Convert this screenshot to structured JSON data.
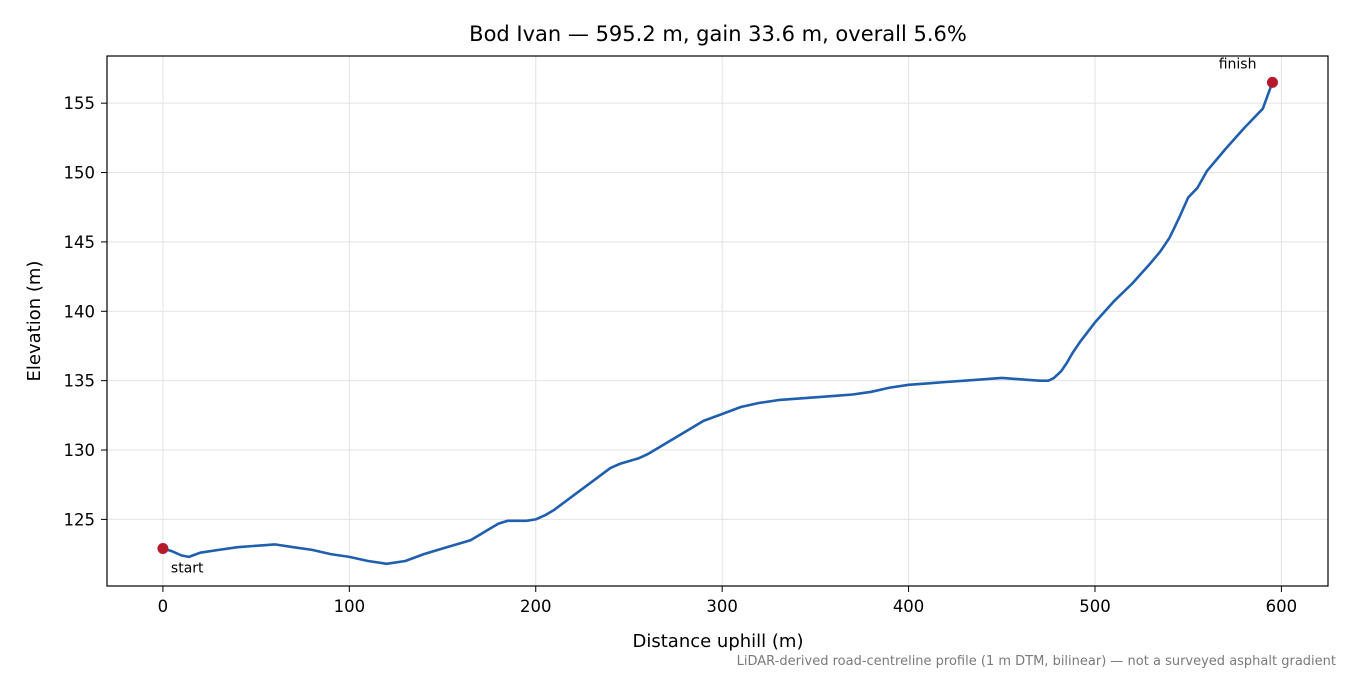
{
  "chart_data": {
    "type": "line",
    "title": "Bod Ivan — 595.2 m, gain 33.6 m, overall 5.6%",
    "xlabel": "Distance uphill (m)",
    "ylabel": "Elevation (m)",
    "xlim": [
      -30,
      625
    ],
    "ylim": [
      120.2,
      158.4
    ],
    "xticks": [
      0,
      100,
      200,
      300,
      400,
      500,
      600
    ],
    "yticks": [
      125,
      130,
      135,
      140,
      145,
      150,
      155
    ],
    "grid": true,
    "line_color": "#1f5fae",
    "marker_color": "#b5192b",
    "series": [
      {
        "x": [
          0,
          5,
          10,
          14,
          20,
          30,
          40,
          50,
          60,
          70,
          80,
          90,
          100,
          110,
          120,
          130,
          140,
          150,
          160,
          165,
          170,
          175,
          180,
          185,
          190,
          195,
          200,
          205,
          210,
          220,
          230,
          240,
          245,
          250,
          255,
          260,
          270,
          280,
          290,
          300,
          310,
          320,
          330,
          340,
          350,
          360,
          370,
          380,
          390,
          400,
          410,
          420,
          430,
          440,
          450,
          460,
          470,
          475,
          478,
          482,
          485,
          488,
          492,
          500,
          510,
          520,
          530,
          535,
          540,
          545,
          550,
          555,
          560,
          570,
          580,
          590,
          595.2
        ],
        "y": [
          122.9,
          122.7,
          122.4,
          122.3,
          122.6,
          122.8,
          123.0,
          123.1,
          123.2,
          123.0,
          122.8,
          122.5,
          122.3,
          122.0,
          121.8,
          122.0,
          122.5,
          122.9,
          123.3,
          123.5,
          123.9,
          124.3,
          124.7,
          124.9,
          124.9,
          124.9,
          125.0,
          125.3,
          125.7,
          126.7,
          127.7,
          128.7,
          129.0,
          129.2,
          129.4,
          129.7,
          130.5,
          131.3,
          132.1,
          132.6,
          133.1,
          133.4,
          133.6,
          133.7,
          133.8,
          133.9,
          134.0,
          134.2,
          134.5,
          134.7,
          134.8,
          134.9,
          135.0,
          135.1,
          135.2,
          135.1,
          135.0,
          135.0,
          135.2,
          135.7,
          136.3,
          137.0,
          137.8,
          139.2,
          140.7,
          142.0,
          143.5,
          144.3,
          145.3,
          146.7,
          148.2,
          148.9,
          150.1,
          151.7,
          153.2,
          154.6,
          156.5
        ]
      }
    ],
    "annotations": [
      {
        "text": "start",
        "x": 0,
        "y": 122.9
      },
      {
        "text": "finish",
        "x": 595.2,
        "y": 156.5
      }
    ],
    "footnote": "LiDAR-derived road-centreline profile (1 m DTM, bilinear) — not a surveyed asphalt gradient"
  }
}
